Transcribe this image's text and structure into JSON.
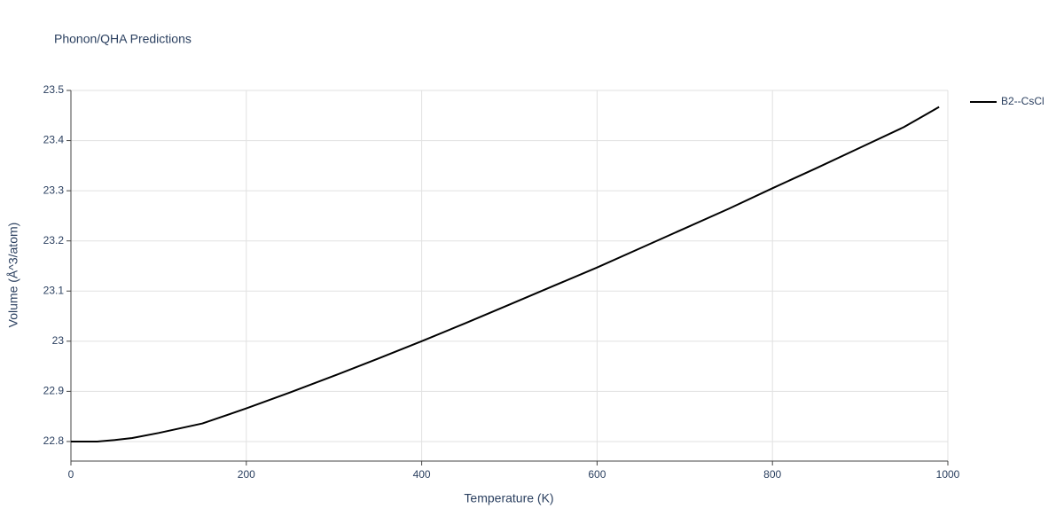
{
  "chart_data": {
    "type": "line",
    "title": "Phonon/QHA Predictions",
    "x_label": "Temperature (K)",
    "y_label": "Volume (Å^3/atom)",
    "x": [
      0,
      30,
      50,
      70,
      100,
      150,
      200,
      250,
      300,
      350,
      400,
      450,
      500,
      550,
      600,
      650,
      700,
      750,
      800,
      850,
      900,
      950,
      990
    ],
    "series": [
      {
        "name": "B2--CsCl",
        "color": "#000000",
        "values": [
          22.8,
          22.8,
          22.803,
          22.807,
          22.817,
          22.836,
          22.866,
          22.898,
          22.931,
          22.965,
          23.0,
          23.036,
          23.073,
          23.11,
          23.147,
          23.186,
          23.225,
          23.264,
          23.305,
          23.345,
          23.386,
          23.427,
          23.467
        ]
      }
    ],
    "xlim": [
      0,
      1000
    ],
    "xticks": [
      0,
      200,
      400,
      600,
      800,
      1000
    ],
    "ylim": [
      22.761,
      23.5
    ],
    "yticks": [
      22.8,
      22.9,
      23,
      23.1,
      23.2,
      23.3,
      23.4,
      23.5
    ],
    "grid": true,
    "legend": "top-right"
  }
}
